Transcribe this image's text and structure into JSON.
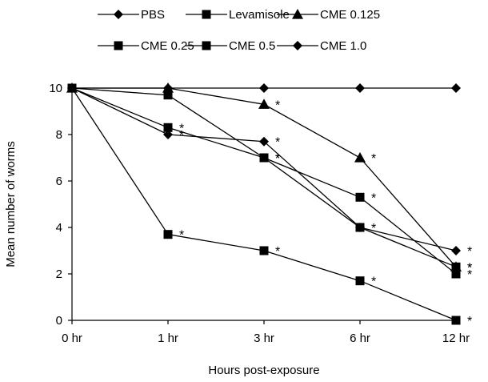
{
  "chart_data": {
    "type": "line",
    "title": "",
    "xlabel": "Hours post-exposure",
    "ylabel": "Mean number of worms",
    "categories": [
      "0 hr",
      "1 hr",
      "3 hr",
      "6 hr",
      "12 hr"
    ],
    "ylim": [
      0,
      10
    ],
    "yticks": [
      "0",
      "2",
      "4",
      "6",
      "8",
      "10"
    ],
    "grid": false,
    "legend_position": "top",
    "significance_mark": "*",
    "series": [
      {
        "name": "PBS",
        "marker": "diamond",
        "values": [
          10,
          10,
          10,
          10,
          10
        ],
        "stars": [
          false,
          false,
          false,
          false,
          false
        ]
      },
      {
        "name": "Levamisole",
        "marker": "square",
        "values": [
          10,
          3.7,
          3.0,
          1.7,
          0.0
        ],
        "stars": [
          false,
          true,
          true,
          true,
          true
        ]
      },
      {
        "name": "CME 0.125",
        "marker": "triangle",
        "values": [
          10,
          10,
          9.3,
          7.0,
          2.3
        ],
        "stars": [
          false,
          false,
          true,
          true,
          true
        ]
      },
      {
        "name": "CME 0.25",
        "marker": "square",
        "values": [
          10,
          9.7,
          7.0,
          5.3,
          2.0
        ],
        "stars": [
          false,
          false,
          true,
          true,
          true
        ]
      },
      {
        "name": "CME 0.5",
        "marker": "square",
        "values": [
          10,
          8.3,
          7.0,
          4.0,
          2.3
        ],
        "stars": [
          false,
          true,
          true,
          true,
          true
        ]
      },
      {
        "name": "CME 1.0",
        "marker": "diamond",
        "values": [
          10,
          8.0,
          7.7,
          4.0,
          3.0
        ],
        "stars": [
          false,
          true,
          true,
          false,
          true
        ]
      }
    ]
  }
}
